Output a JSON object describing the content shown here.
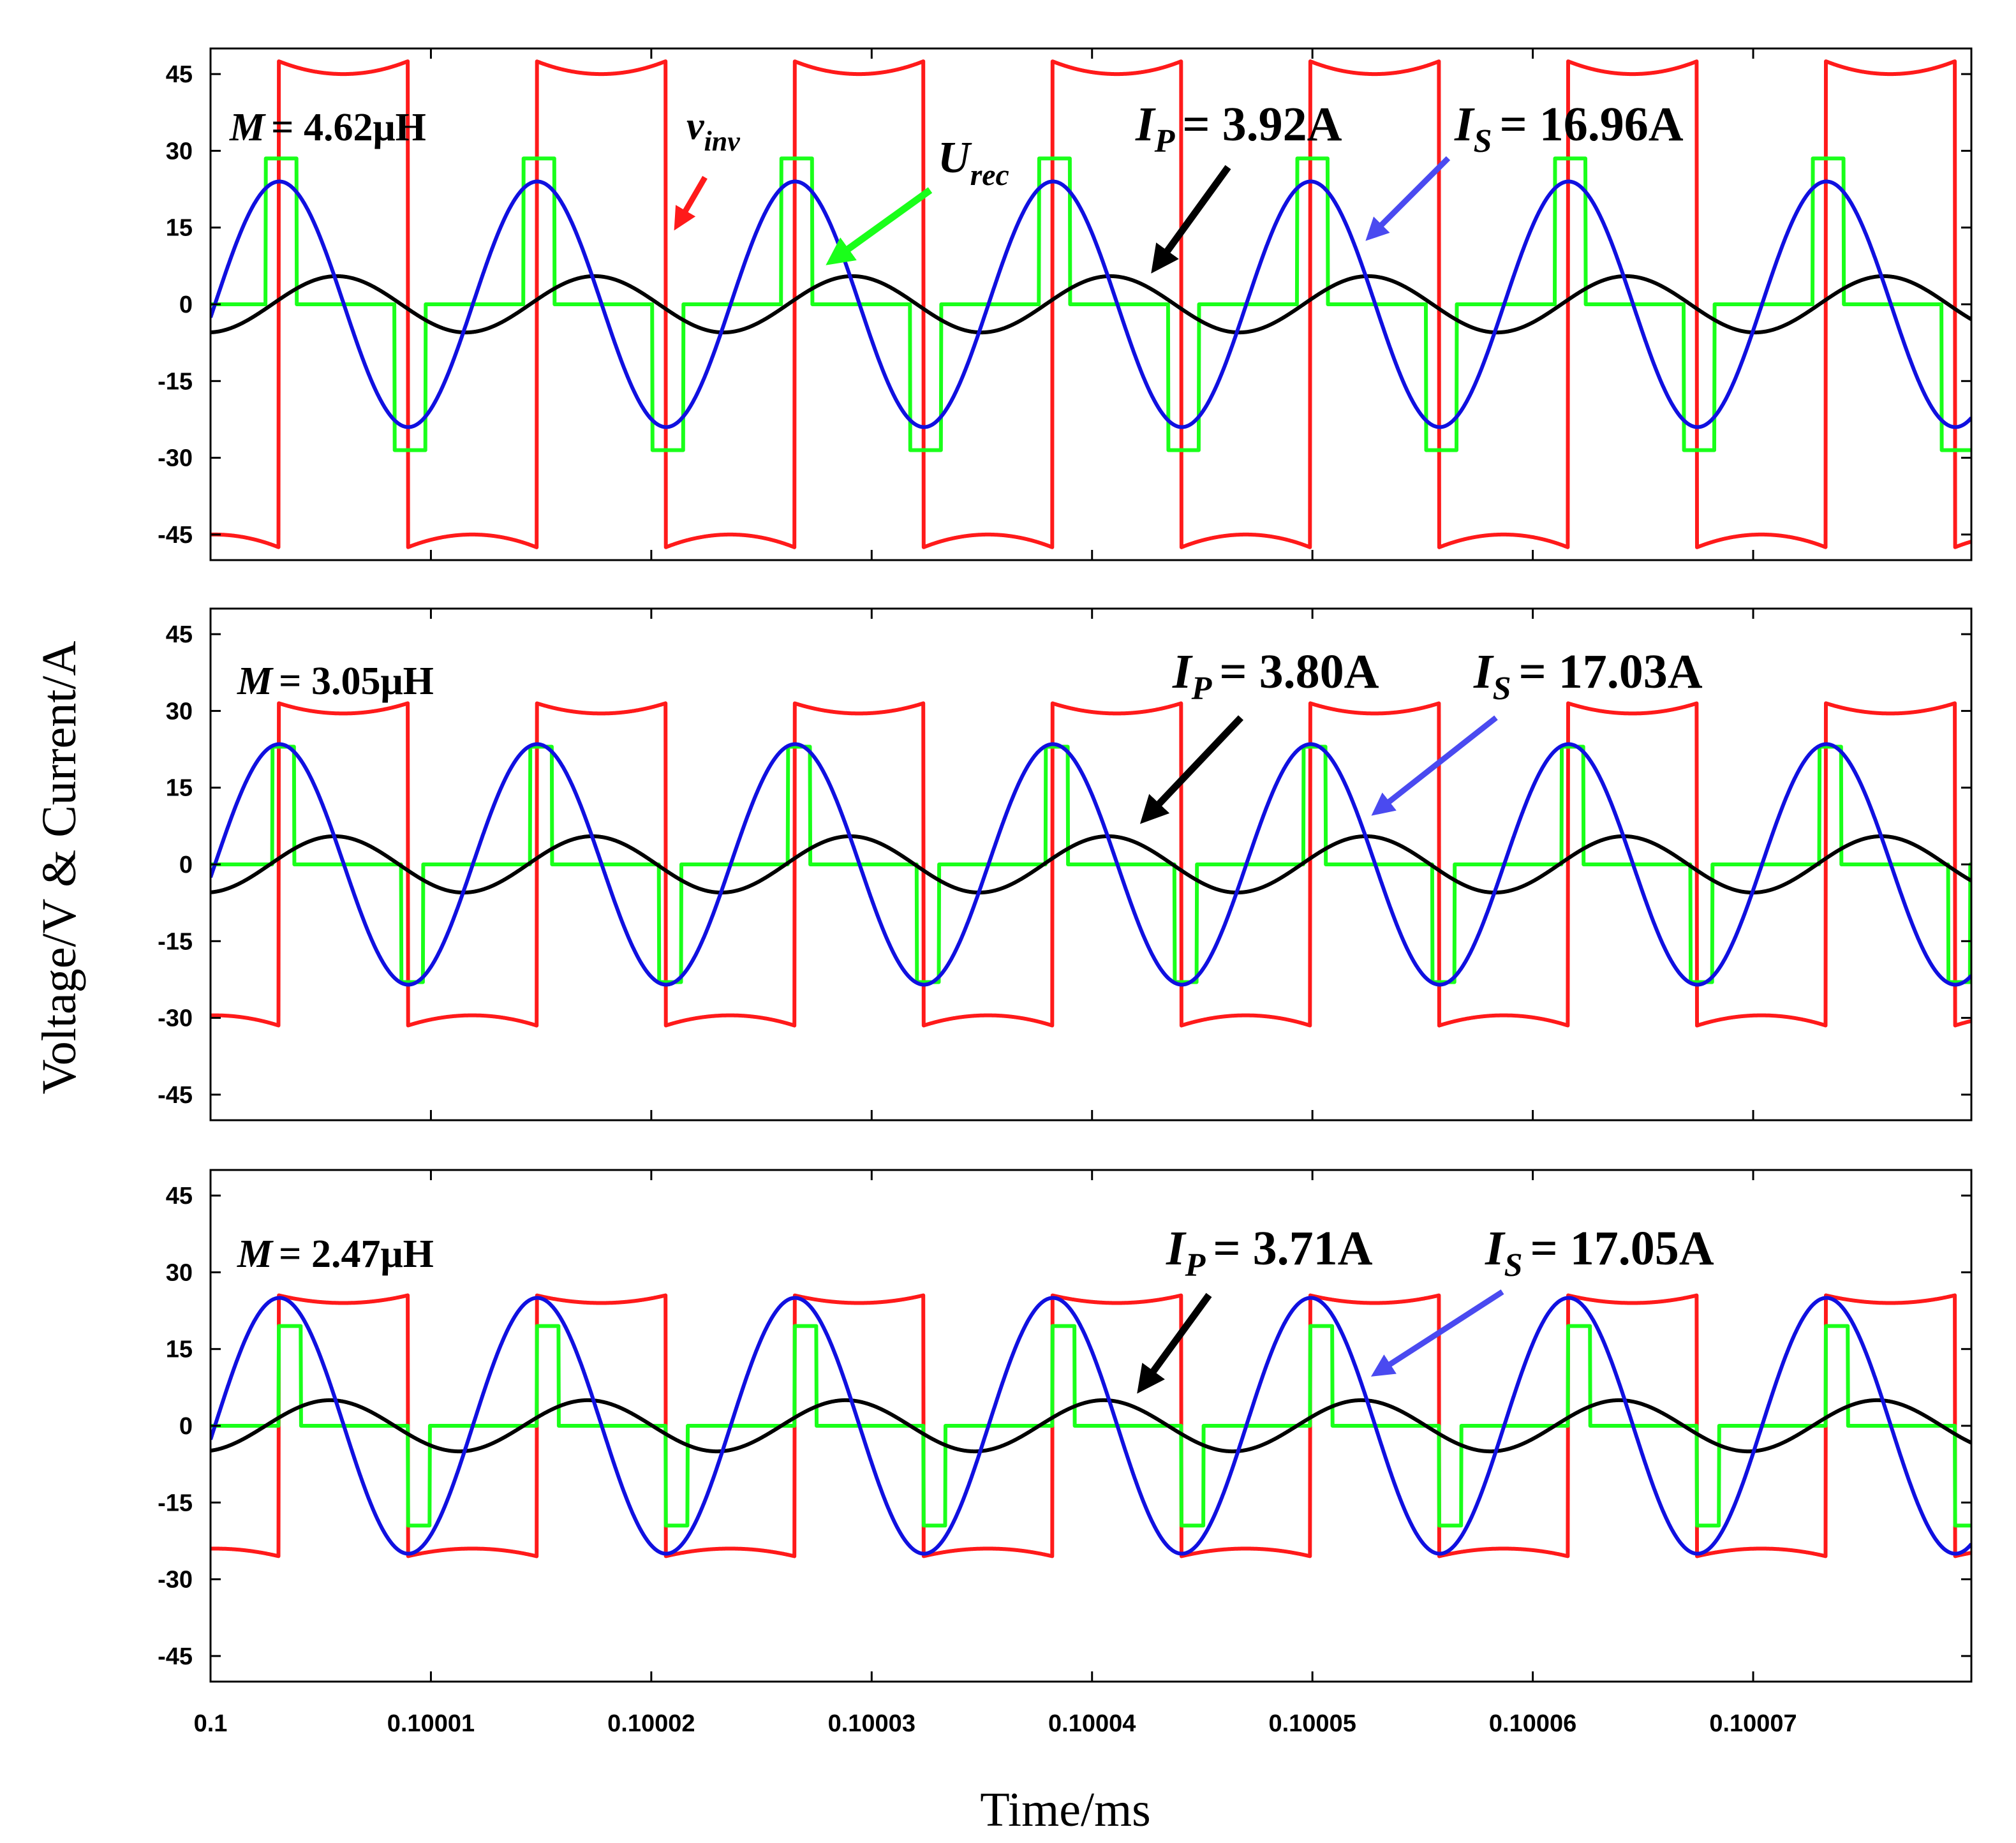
{
  "chart_data": {
    "type": "line",
    "xlabel": "Time/ms",
    "ylabel": "Voltage/V & Current/A",
    "xlim": [
      0.1,
      0.1000799
    ],
    "ylim": [
      -50,
      50
    ],
    "x_ticks": [
      0.1,
      0.10001,
      0.10002,
      0.10003,
      0.10004,
      0.10005,
      0.10006,
      0.10007
    ],
    "x_tick_labels": [
      "0.1",
      "0.10001",
      "0.10002",
      "0.10003",
      "0.10004",
      "0.10005",
      "0.10006",
      "0.10007"
    ],
    "y_ticks": [
      45,
      30,
      15,
      0,
      -15,
      -30,
      -45
    ],
    "y_tick_labels": [
      "45",
      "30",
      "15",
      "0",
      "-15",
      "-30",
      "-45"
    ],
    "period": 1.17e-05,
    "colors": {
      "v_inv": "#ff1a1a",
      "U_rec": "#1aff1a",
      "I_P": "#000000",
      "I_S": "#1010e0",
      "arrow_I_S": "#4a4af0"
    },
    "panels": [
      {
        "annotations": {
          "M_symbol": "M",
          "M_value": "= 4.62μH",
          "IP_symbol": "I",
          "IP_sub": "P",
          "IP_value": "= 3.92A",
          "IS_symbol": "I",
          "IS_sub": "S",
          "IS_value": "= 16.96A",
          "vinv_symbol": "v",
          "vinv_sub": "inv",
          "urec_symbol": "U",
          "urec_sub": "rec"
        },
        "series": [
          {
            "name": "v_inv",
            "kind": "square",
            "amplitude": 47.5,
            "t_first_rise": 3.1e-06,
            "droop": 2.5
          },
          {
            "name": "U_rec",
            "kind": "pulse",
            "amplitude": 28.5,
            "t_on": 2.5e-06,
            "pulse_width": 1.4e-06
          },
          {
            "name": "I_S",
            "kind": "sine",
            "amplitude": 24,
            "t_zero_rising": 2e-07
          },
          {
            "name": "I_P",
            "kind": "sine",
            "amplitude": 5.5,
            "t_zero_rising": 2.8e-06
          }
        ]
      },
      {
        "annotations": {
          "M_symbol": "M",
          "M_value": "= 3.05μH",
          "IP_symbol": "I",
          "IP_sub": "P",
          "IP_value": "= 3.80A",
          "IS_symbol": "I",
          "IS_sub": "S",
          "IS_value": "= 17.03A"
        },
        "series": [
          {
            "name": "v_inv",
            "kind": "square",
            "amplitude": 31.5,
            "t_first_rise": 3.1e-06,
            "droop": 2
          },
          {
            "name": "U_rec",
            "kind": "pulse",
            "amplitude": 23,
            "t_on": 2.8e-06,
            "pulse_width": 1e-06
          },
          {
            "name": "I_S",
            "kind": "sine",
            "amplitude": 23.5,
            "t_zero_rising": 2e-07
          },
          {
            "name": "I_P",
            "kind": "sine",
            "amplitude": 5.5,
            "t_zero_rising": 2.7e-06
          }
        ]
      },
      {
        "annotations": {
          "M_symbol": "M",
          "M_value": "= 2.47μH",
          "IP_symbol": "I",
          "IP_sub": "P",
          "IP_value": "= 3.71A",
          "IS_symbol": "I",
          "IS_sub": "S",
          "IS_value": "= 17.05A"
        },
        "series": [
          {
            "name": "v_inv",
            "kind": "square",
            "amplitude": 25.5,
            "t_first_rise": 3.1e-06,
            "droop": 1.5
          },
          {
            "name": "U_rec",
            "kind": "pulse",
            "amplitude": 19.5,
            "t_on": 3.1e-06,
            "pulse_width": 1e-06
          },
          {
            "name": "I_S",
            "kind": "sine",
            "amplitude": 25,
            "t_zero_rising": 2e-07
          },
          {
            "name": "I_P",
            "kind": "sine",
            "amplitude": 5,
            "t_zero_rising": 2.5e-06
          }
        ]
      }
    ]
  }
}
